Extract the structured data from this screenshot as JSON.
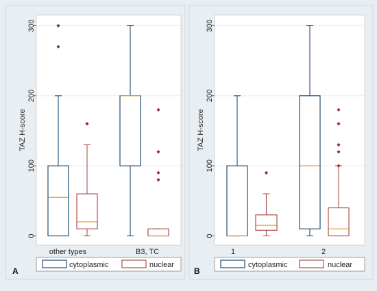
{
  "figure": {
    "colors": {
      "outer_bg": "#e9eef2",
      "plot_bg": "#ffffff",
      "grid": "#e6ecef",
      "cytoplasmic": "#1f4e79",
      "nuclear": "#a9514b",
      "median": "#d9a43a",
      "outlier_cytoplasmic": "#1f4e79",
      "outlier_nuclear": "#8b2e2e"
    }
  },
  "chart_data": [
    {
      "type": "box",
      "panel_letter": "A",
      "ylabel": "TAZ H-score",
      "ylim": [
        0,
        310
      ],
      "yticks": [
        0,
        100,
        200,
        300
      ],
      "grid": true,
      "categories": [
        "other types",
        "B3, TC"
      ],
      "legend": {
        "placement": "bottom",
        "entries": [
          "cytoplasmic",
          "nuclear"
        ]
      },
      "series": [
        {
          "name": "cytoplasmic",
          "boxes": [
            {
              "min": 0,
              "q1": 0,
              "median": 55,
              "q3": 100,
              "max": 200,
              "outliers": [
                270,
                300
              ]
            },
            {
              "min": 0,
              "q1": 100,
              "median": 200,
              "q3": 200,
              "max": 300,
              "outliers": []
            }
          ]
        },
        {
          "name": "nuclear",
          "boxes": [
            {
              "min": 0,
              "q1": 10,
              "median": 20,
              "q3": 60,
              "max": 130,
              "outliers": [
                160
              ]
            },
            {
              "min": 0,
              "q1": 0,
              "median": 0,
              "q3": 10,
              "max": 10,
              "outliers": [
                80,
                90,
                120,
                180
              ]
            }
          ]
        }
      ]
    },
    {
      "type": "box",
      "panel_letter": "B",
      "ylabel": "TAZ H-score",
      "ylim": [
        0,
        310
      ],
      "yticks": [
        0,
        100,
        200,
        300
      ],
      "grid": true,
      "categories": [
        "1",
        "2"
      ],
      "legend": {
        "placement": "bottom",
        "entries": [
          "cytoplasmic",
          "nuclear"
        ]
      },
      "series": [
        {
          "name": "cytoplasmic",
          "boxes": [
            {
              "min": 0,
              "q1": 0,
              "median": 0,
              "q3": 100,
              "max": 200,
              "outliers": []
            },
            {
              "min": 0,
              "q1": 10,
              "median": 100,
              "q3": 200,
              "max": 300,
              "outliers": []
            }
          ]
        },
        {
          "name": "nuclear",
          "boxes": [
            {
              "min": 0,
              "q1": 8,
              "median": 15,
              "q3": 30,
              "max": 60,
              "outliers": [
                90
              ]
            },
            {
              "min": 0,
              "q1": 0,
              "median": 10,
              "q3": 40,
              "max": 100,
              "outliers": [
                100,
                120,
                130,
                160,
                180
              ]
            }
          ]
        }
      ]
    }
  ]
}
